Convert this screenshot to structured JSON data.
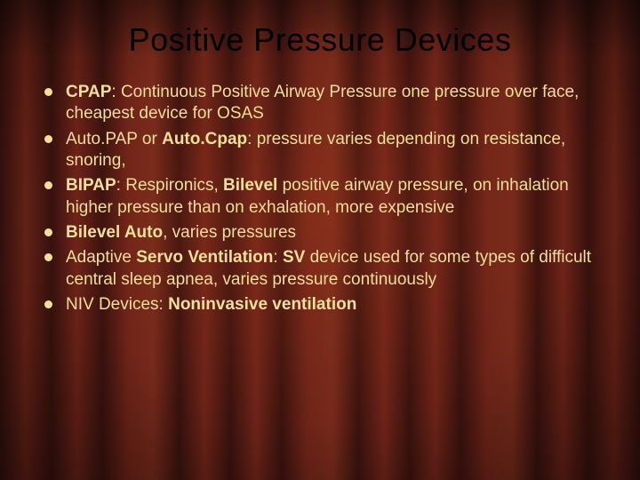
{
  "slide": {
    "title": "Positive Pressure Devices",
    "title_color": "#000000",
    "title_fontsize": 36,
    "body_fontsize": 19,
    "body_color": "#f2df9c",
    "bullet_color": "#f2df9c",
    "background_curtain_colors": [
      "#3a120e",
      "#6e2418",
      "#752a1a"
    ],
    "bullets": [
      {
        "segments": [
          {
            "text": "CPAP",
            "bold": true
          },
          {
            "text": ": Continuous Positive Airway Pressure one pressure over face, cheapest device for OSAS",
            "bold": false
          }
        ]
      },
      {
        "segments": [
          {
            "text": "Auto.PAP or ",
            "bold": false
          },
          {
            "text": "Auto.Cpap",
            "bold": true
          },
          {
            "text": ": pressure varies depending on resistance, snoring,",
            "bold": false
          }
        ]
      },
      {
        "segments": [
          {
            "text": "BIPAP",
            "bold": true
          },
          {
            "text": ": Respironics, ",
            "bold": false
          },
          {
            "text": "Bilevel ",
            "bold": true
          },
          {
            "text": "positive airway pressure, on inhalation higher pressure than on exhalation, more expensive",
            "bold": false
          }
        ]
      },
      {
        "segments": [
          {
            "text": "Bilevel Auto",
            "bold": true
          },
          {
            "text": ", varies pressures",
            "bold": false
          }
        ]
      },
      {
        "segments": [
          {
            "text": "Adaptive ",
            "bold": false
          },
          {
            "text": "Servo Ventilation",
            "bold": true
          },
          {
            "text": ": ",
            "bold": false
          },
          {
            "text": "SV ",
            "bold": true
          },
          {
            "text": "device used for some types of difficult central sleep apnea, varies pressure continuously",
            "bold": false
          }
        ]
      },
      {
        "segments": [
          {
            "text": "NIV Devices: ",
            "bold": false
          },
          {
            "text": "Noninvasive ventilation",
            "bold": true
          }
        ]
      }
    ]
  }
}
